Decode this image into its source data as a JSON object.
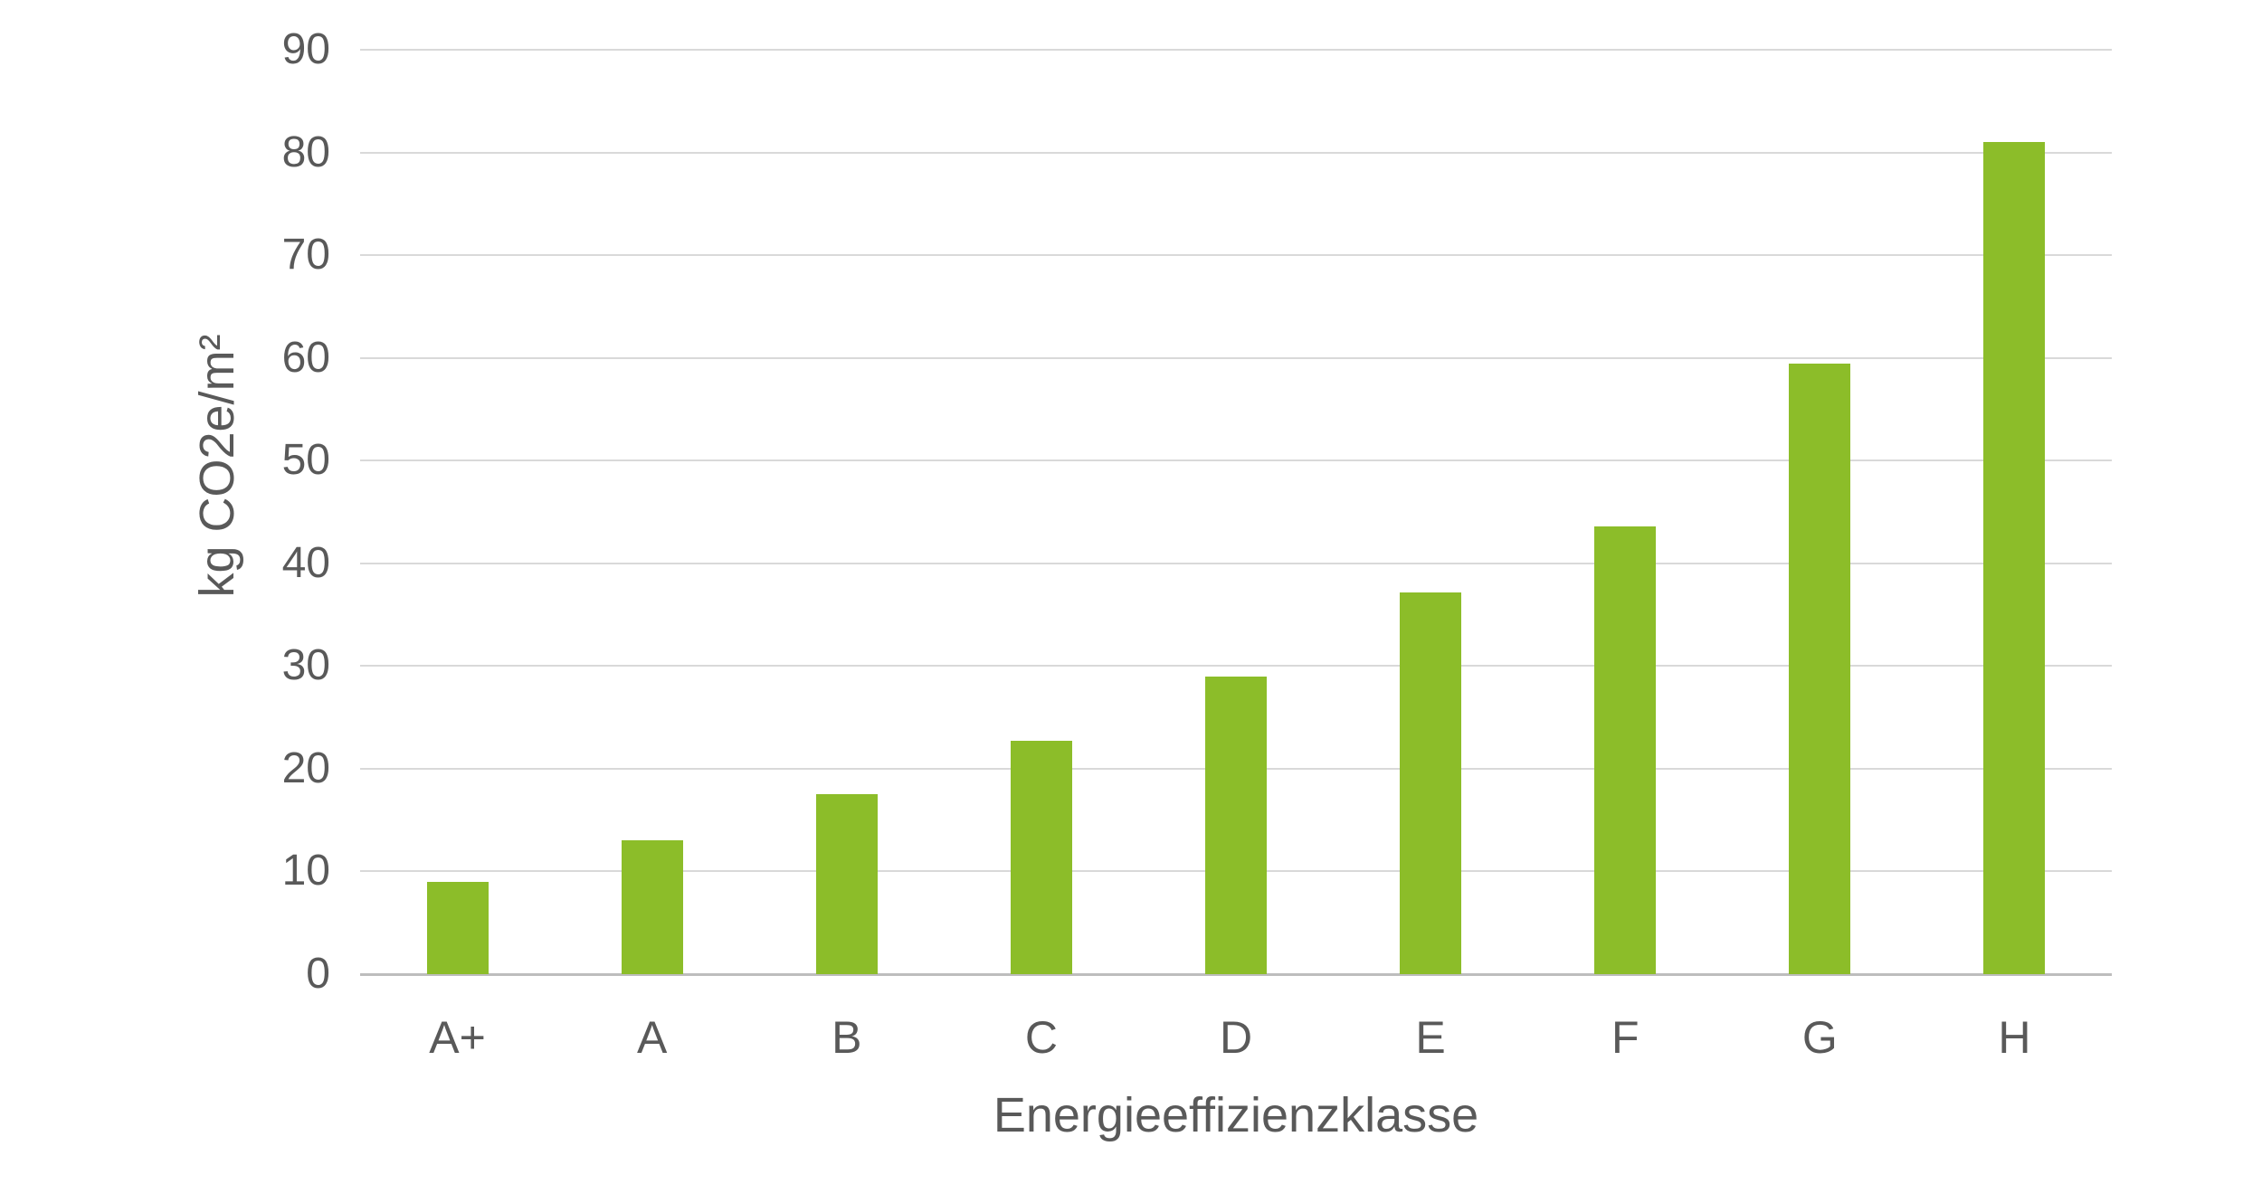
{
  "chart_data": {
    "type": "bar",
    "title": "",
    "categories": [
      "A+",
      "A",
      "B",
      "C",
      "D",
      "E",
      "F",
      "G",
      "H"
    ],
    "values": [
      9,
      13,
      17.5,
      22.7,
      29,
      37.2,
      43.6,
      59.4,
      81
    ],
    "xlabel": "Energieeffizienzklasse",
    "ylabel": "kg CO2e/m²",
    "ylim": [
      0,
      90
    ],
    "ytick_step": 10,
    "yticks": [
      0,
      10,
      20,
      30,
      40,
      50,
      60,
      70,
      80,
      90
    ],
    "grid": "horizontal",
    "legend": "none",
    "bar_color": "#8CBD29",
    "gridline_color": "#D9D9D9",
    "axis_line_color": "#BDBDBD",
    "text_color": "#595959",
    "background": "#FFFFFF"
  }
}
